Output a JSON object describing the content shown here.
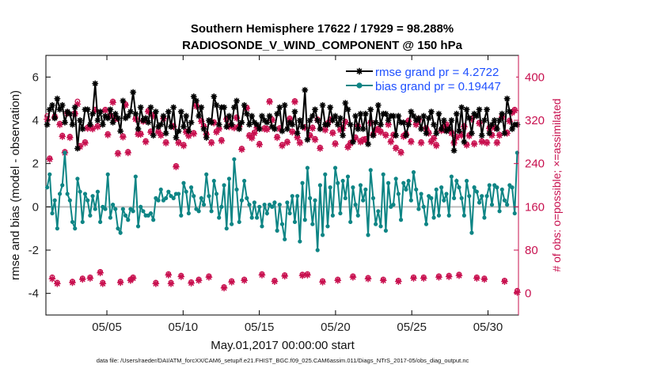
{
  "chart_data": {
    "type": "line",
    "title": [
      "Southern Hemisphere 17622 / 17929 = 98.288%",
      "RADIOSONDE_V_WIND_COMPONENT @ 150 hPa"
    ],
    "xlabel": "May.01,2017 00:00:00 start",
    "ylabel_left": "rmse and bias (model - observation)",
    "ylabel_right": "# of obs: o=possible; ×=assimilated",
    "footnote": "data file: /Users/raeder/DAI/ATM_forcXX/CAM6_setup/f.e21.FHIST_BGC.f09_025.CAM6assim.011/Diags_NTrS_2017-05/obs_diag_output.nc",
    "x_range_days": [
      1.0,
      32.0
    ],
    "ylim_left": [
      -5,
      7
    ],
    "ylim_right": [
      -40,
      440
    ],
    "x_ticks": [
      {
        "day": 5,
        "label": "05/05"
      },
      {
        "day": 10,
        "label": "05/10"
      },
      {
        "day": 15,
        "label": "05/15"
      },
      {
        "day": 20,
        "label": "05/20"
      },
      {
        "day": 25,
        "label": "05/25"
      },
      {
        "day": 30,
        "label": "05/30"
      }
    ],
    "y_ticks_left": [
      -4,
      -2,
      0,
      2,
      4,
      6
    ],
    "y_ticks_right": [
      0,
      80,
      160,
      240,
      320,
      400
    ],
    "zero_line": 0,
    "series": [
      {
        "name": "rmse grand pr = 4.2722",
        "color": "#000000",
        "axis": "left",
        "values": [
          3.8,
          4.5,
          4.7,
          4.1,
          5.0,
          4.5,
          4.7,
          3.9,
          4.4,
          4.3,
          3.8,
          4.6,
          2.7,
          4.0,
          3.6,
          4.5,
          4.5,
          3.8,
          4.3,
          5.7,
          4.0,
          4.4,
          3.8,
          4.2,
          4.1,
          4.5,
          3.9,
          4.3,
          4.1,
          3.5,
          4.9,
          4.1,
          4.2,
          4.4,
          5.3,
          4.3,
          3.6,
          4.6,
          4.0,
          4.1,
          3.9,
          4.6,
          3.3,
          4.4,
          3.7,
          3.8,
          4.2,
          3.4,
          4.4,
          3.7,
          4.6,
          3.2,
          3.5,
          4.4,
          3.7,
          4.2,
          3.5,
          3.9,
          5.1,
          4.9,
          4.2,
          4.6,
          3.6,
          3.2,
          4.0,
          3.9,
          5.1,
          4.7,
          3.8,
          4.6,
          4.6,
          3.7,
          4.2,
          3.8,
          4.6,
          4.9,
          3.6,
          3.9,
          4.7,
          4.3,
          3.8,
          4.2,
          3.9,
          3.8,
          3.6,
          4.2,
          4.0,
          3.9,
          4.2,
          3.7,
          3.6,
          4.3,
          4.6,
          3.5,
          4.7,
          3.6,
          3.9,
          3.8,
          4.4,
          3.4,
          4.0,
          3.7,
          5.4,
          3.1,
          4.0,
          4.2,
          4.5,
          4.0,
          3.6,
          4.7,
          3.8,
          3.8,
          4.6,
          4.0,
          4.2,
          3.8,
          4.1,
          3.3,
          4.8,
          4.5,
          3.8,
          3.0,
          4.2,
          3.6,
          4.3,
          3.6,
          4.3,
          2.9,
          4.5,
          3.3,
          3.9,
          4.7,
          3.8,
          4.3,
          4.3,
          4.0,
          4.2,
          4.2,
          3.3,
          4.2,
          3.9,
          3.9,
          3.3,
          3.8,
          4.4,
          4.2,
          4.0,
          4.1,
          3.6,
          4.2,
          3.4,
          4.1,
          4.4,
          3.8,
          3.4,
          4.3,
          3.6,
          4.0,
          3.5,
          3.6,
          4.0,
          2.6,
          4.3,
          3.5,
          4.6,
          3.0,
          4.5,
          4.1,
          3.4,
          4.3,
          4.2,
          4.5,
          3.3,
          4.0,
          4.5,
          3.4,
          3.8,
          4.0,
          3.6,
          4.0,
          4.3,
          3.4,
          5.0,
          4.4,
          3.6,
          3.8,
          3.8
        ]
      },
      {
        "name": "bias grand pr = 0.19447",
        "color": "#0e8585",
        "axis": "left",
        "values": [
          0.9,
          1.5,
          -0.3,
          0.3,
          -1.0,
          0.6,
          1.0,
          2.5,
          0.6,
          0.3,
          -0.7,
          -1.0,
          1.3,
          0.7,
          -0.7,
          0.6,
          0.3,
          -0.4,
          0.5,
          -0.1,
          0.7,
          -0.7,
          0.0,
          -0.1,
          1.5,
          -0.5,
          0.1,
          -0.1,
          -1.0,
          -1.2,
          -0.1,
          -0.4,
          -0.6,
          -0.1,
          -0.2,
          1.4,
          -0.9,
          0.0,
          -0.2,
          -0.4,
          -0.4,
          -0.3,
          -0.6,
          0.4,
          0.3,
          0.8,
          0.3,
          0.4,
          0.7,
          0.5,
          0.4,
          0.6,
          0.6,
          -0.4,
          1.1,
          0.7,
          -0.3,
          0.9,
          0.5,
          -0.1,
          -0.2,
          0.4,
          0.1,
          1.5,
          0.5,
          -0.2,
          1.2,
          0.6,
          -0.5,
          0.0,
          1.0,
          -1.0,
          1.3,
          -0.8,
          2.2,
          0.8,
          -0.7,
          0.3,
          1.2,
          0.4,
          0.1,
          -0.5,
          0.2,
          -0.5,
          0.0,
          -0.9,
          0.1,
          -0.3,
          0.1,
          0.0,
          0.2,
          -1.1,
          0.1,
          -0.8,
          -1.5,
          0.2,
          -0.3,
          0.5,
          -0.7,
          0.5,
          -1.6,
          1.1,
          -0.6,
          1.8,
          0.4,
          -0.8,
          0.3,
          -2.0,
          1.0,
          -1.3,
          1.5,
          -0.9,
          0.9,
          -0.4,
          1.8,
          1.1,
          -0.3,
          1.2,
          0.4,
          1.4,
          -0.7,
          0.9,
          0.1,
          -0.4,
          1.0,
          0.3,
          0.8,
          -1.3,
          1.7,
          0.4,
          -0.8,
          -0.2,
          -0.9,
          1.5,
          -1.1,
          1.1,
          0.0,
          0.1,
          1.3,
          0.6,
          -0.6,
          1.1,
          0.8,
          1.2,
          0.3,
          1.6,
          0.8,
          -0.1,
          0.6,
          0.0,
          -0.8,
          0.5,
          0.4,
          -0.5,
          0.8,
          -0.4,
          0.9,
          0.3,
          0.6,
          -0.4,
          1.4,
          0.4,
          1.2,
          0.9,
          0.4,
          -0.4,
          1.2,
          0.5,
          -1.2,
          0.9,
          0.7,
          0.2,
          0.5,
          -0.5,
          0.5,
          1.0,
          0.1,
          1.0,
          0.9,
          -0.2,
          0.8,
          0.3,
          0.1,
          1.0,
          0.9,
          -0.3,
          2.5
        ]
      },
      {
        "name": "obs possible",
        "color": "#c8104f",
        "axis": "right",
        "values": [
          328,
          250,
          30,
          328,
          20,
          314,
          292,
          262,
          335,
          290,
          22,
          334,
          355,
          273,
          28,
          280,
          307,
          30,
          306,
          340,
          310,
          40,
          20,
          340,
          295,
          330,
          355,
          324,
          260,
          22,
          291,
          350,
          262,
          26,
          30,
          324,
          296,
          296,
          320,
          282,
          338,
          300,
          330,
          20,
          300,
          294,
          325,
          280,
          36,
          20,
          310,
          236,
          280,
          33,
          275,
          300,
          293,
          21,
          297,
          348,
          26,
          320,
          310,
          296,
          32,
          280,
          317,
          300,
          306,
          284,
          12,
          324,
          310,
          23,
          308,
          326,
          310,
          268,
          26,
          344,
          293,
          289,
          298,
          308,
          277,
          36,
          306,
          305,
          356,
          322,
          24,
          290,
          306,
          275,
          34,
          281,
          324,
          300,
          356,
          290,
          280,
          35,
          308,
          36,
          293,
          307,
          286,
          322,
          270,
          23,
          304,
          315,
          322,
          298,
          278,
          26,
          304,
          307,
          318,
          272,
          279,
          32,
          289,
          310,
          282,
          285,
          286,
          29,
          317,
          295,
          303,
          305,
          300,
          26,
          294,
          314,
          282,
          294,
          270,
          24,
          262,
          292,
          296,
          320,
          282,
          30,
          314,
          323,
          280,
          30,
          306,
          298,
          282,
          288,
          275,
          32,
          303,
          305,
          313,
          33,
          298,
          280,
          290,
          35,
          294,
          310,
          276,
          293,
          324,
          278,
          30,
          316,
          282,
          28,
          280,
          307,
          294,
          308,
          280,
          294,
          328,
          24,
          298,
          320,
          336,
          340,
          5
        ]
      },
      {
        "name": "obs assimilated",
        "color": "#c8104f",
        "axis": "right",
        "values": [
          322,
          248,
          27,
          326,
          18,
          312,
          290,
          260,
          333,
          288,
          20,
          332,
          350,
          271,
          26,
          278,
          305,
          28,
          304,
          338,
          308,
          38,
          18,
          338,
          293,
          328,
          353,
          322,
          258,
          20,
          289,
          348,
          260,
          24,
          28,
          322,
          294,
          294,
          318,
          280,
          336,
          298,
          328,
          18,
          298,
          292,
          323,
          278,
          34,
          18,
          308,
          234,
          278,
          31,
          273,
          298,
          291,
          19,
          295,
          346,
          24,
          318,
          308,
          294,
          30,
          278,
          315,
          298,
          304,
          282,
          10,
          322,
          308,
          21,
          306,
          324,
          308,
          266,
          24,
          342,
          291,
          287,
          296,
          306,
          275,
          34,
          304,
          303,
          354,
          320,
          22,
          288,
          304,
          273,
          32,
          279,
          322,
          298,
          354,
          288,
          278,
          33,
          306,
          34,
          291,
          305,
          284,
          320,
          268,
          21,
          302,
          313,
          320,
          296,
          276,
          24,
          302,
          305,
          316,
          270,
          277,
          30,
          287,
          308,
          280,
          283,
          284,
          27,
          315,
          293,
          301,
          303,
          298,
          24,
          292,
          312,
          280,
          292,
          268,
          22,
          260,
          290,
          294,
          318,
          280,
          28,
          312,
          321,
          278,
          28,
          304,
          296,
          280,
          286,
          273,
          30,
          301,
          303,
          311,
          31,
          296,
          278,
          288,
          33,
          292,
          308,
          274,
          291,
          322,
          276,
          28,
          314,
          280,
          26,
          278,
          305,
          292,
          306,
          278,
          292,
          326,
          22,
          296,
          318,
          334,
          338,
          2
        ]
      }
    ],
    "legend": [
      {
        "label": "rmse grand pr = 4.2722",
        "color": "#000000",
        "position": "top-right"
      },
      {
        "label": "bias grand pr = 0.19447",
        "color": "#0e8585",
        "position": "top-right"
      }
    ]
  }
}
